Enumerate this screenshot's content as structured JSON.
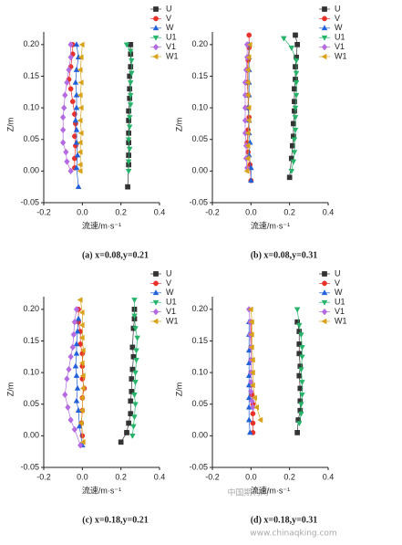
{
  "chart_data": [
    {
      "type": "line",
      "caption": "(a) x=0.08,y=0.21",
      "xlabel": "流速/m·s⁻¹",
      "ylabel": "Z/m",
      "xlim": [
        -0.2,
        0.4
      ],
      "ylim": [
        -0.05,
        0.22
      ],
      "xticks": [
        {
          "value": -0.2,
          "label": "-0.2"
        },
        {
          "value": 0,
          "label": "0.0"
        },
        0.2,
        0.4
      ],
      "yticks": [
        {
          "value": -0.05,
          "label": "-0.05"
        },
        {
          "value": 0,
          "label": "0.00"
        },
        0.05,
        {
          "value": 0.1,
          "label": "0.10"
        },
        0.15,
        {
          "value": 0.2,
          "label": "0.20"
        }
      ],
      "series": [
        {
          "name": "U",
          "color": "#333333",
          "marker": "square",
          "x": [
            0.25,
            0.25,
            0.25,
            0.245,
            0.245,
            0.245,
            0.24,
            0.24,
            0.24,
            0.24,
            0.24,
            0.24,
            0.235
          ],
          "values": [
            0.2,
            0.185,
            0.165,
            0.15,
            0.13,
            0.115,
            0.095,
            0.08,
            0.06,
            0.045,
            0.025,
            0.01,
            -0.025
          ]
        },
        {
          "name": "V",
          "color": "#e8312a",
          "marker": "circle",
          "x": [
            -0.05,
            -0.05,
            -0.06,
            -0.07,
            -0.06,
            -0.05,
            -0.04,
            -0.035,
            -0.04,
            -0.035,
            -0.04,
            -0.04
          ],
          "values": [
            0.2,
            0.185,
            0.165,
            0.145,
            0.13,
            0.11,
            0.09,
            0.075,
            0.055,
            0.04,
            0.02,
            0.005
          ]
        },
        {
          "name": "W",
          "color": "#2160d8",
          "marker": "triangle-up",
          "x": [
            -0.03,
            -0.02,
            -0.03,
            -0.035,
            -0.03,
            -0.03,
            -0.035,
            -0.03,
            -0.03,
            -0.025,
            -0.03,
            -0.02
          ],
          "values": [
            0.2,
            0.18,
            0.16,
            0.14,
            0.12,
            0.1,
            0.08,
            0.065,
            0.045,
            0.025,
            0.005,
            -0.025
          ]
        },
        {
          "name": "U1",
          "color": "#26b36a",
          "marker": "triangle-down",
          "x": [
            0.23,
            0.25,
            0.255,
            0.255,
            0.25,
            0.25,
            0.25,
            0.245,
            0.245,
            0.24,
            0.245,
            0.24,
            0.24
          ],
          "values": [
            0.2,
            0.19,
            0.175,
            0.155,
            0.14,
            0.12,
            0.105,
            0.085,
            0.07,
            0.05,
            0.035,
            0.015,
            0
          ]
        },
        {
          "name": "V1",
          "color": "#b36ae2",
          "marker": "diamond",
          "x": [
            -0.06,
            -0.06,
            -0.07,
            -0.08,
            -0.09,
            -0.095,
            -0.1,
            -0.1,
            -0.1,
            -0.085,
            -0.08,
            -0.06
          ],
          "values": [
            0.2,
            0.18,
            0.16,
            0.14,
            0.12,
            0.1,
            0.085,
            0.065,
            0.045,
            0.03,
            0.015,
            0
          ]
        },
        {
          "name": "W1",
          "color": "#d9a21b",
          "marker": "triangle-left",
          "x": [
            0,
            -0.005,
            -0.01,
            -0.005,
            -0.01,
            -0.005,
            -0.01,
            -0.005,
            -0.01,
            -0.01,
            -0.01,
            -0.01
          ],
          "values": [
            0.2,
            0.18,
            0.16,
            0.14,
            0.12,
            0.1,
            0.08,
            0.06,
            0.045,
            0.03,
            0.01,
            0
          ]
        }
      ]
    },
    {
      "type": "line",
      "caption": "(b) x=0.08,y=0.31",
      "xlabel": "流速/m·s⁻¹",
      "ylabel": "Z/m",
      "xlim": [
        -0.2,
        0.4
      ],
      "ylim": [
        -0.05,
        0.22
      ],
      "xticks": [
        {
          "value": -0.2,
          "label": "-0.2"
        },
        {
          "value": 0,
          "label": "0.0"
        },
        0.2,
        0.4
      ],
      "yticks": [
        {
          "value": -0.05,
          "label": "-0.05"
        },
        {
          "value": 0,
          "label": "0.00"
        },
        0.05,
        {
          "value": 0.1,
          "label": "0.10"
        },
        0.15,
        {
          "value": 0.2,
          "label": "0.20"
        }
      ],
      "series": [
        {
          "name": "U",
          "color": "#333333",
          "marker": "square",
          "x": [
            0.23,
            0.24,
            0.235,
            0.23,
            0.23,
            0.225,
            0.225,
            0.225,
            0.22,
            0.22,
            0.215,
            0.21,
            0.2
          ],
          "values": [
            0.215,
            0.2,
            0.18,
            0.165,
            0.145,
            0.13,
            0.11,
            0.095,
            0.075,
            0.055,
            0.04,
            0.02,
            -0.01
          ]
        },
        {
          "name": "V",
          "color": "#e8312a",
          "marker": "circle",
          "x": [
            -0.01,
            -0.01,
            -0.015,
            -0.02,
            -0.02,
            -0.015,
            -0.015,
            -0.01,
            -0.015,
            -0.02,
            -0.015,
            -0.005,
            0
          ],
          "values": [
            0.215,
            0.195,
            0.175,
            0.16,
            0.14,
            0.12,
            0.1,
            0.085,
            0.065,
            0.045,
            0.03,
            0.01,
            -0.015
          ]
        },
        {
          "name": "W",
          "color": "#2160d8",
          "marker": "triangle-up",
          "x": [
            -0.01,
            -0.01,
            -0.01,
            -0.01,
            -0.01,
            -0.015,
            -0.01,
            -0.01,
            -0.005,
            -0.01,
            0,
            0
          ],
          "values": [
            0.2,
            0.18,
            0.16,
            0.14,
            0.12,
            0.1,
            0.08,
            0.06,
            0.045,
            0.025,
            0.005,
            -0.015
          ]
        },
        {
          "name": "U1",
          "color": "#26b36a",
          "marker": "triangle-down",
          "x": [
            0.17,
            0.21,
            0.235,
            0.235,
            0.235,
            0.235,
            0.23,
            0.23,
            0.23,
            0.225,
            0.225,
            0.22,
            0.21
          ],
          "values": [
            0.21,
            0.195,
            0.175,
            0.155,
            0.14,
            0.12,
            0.1,
            0.085,
            0.065,
            0.05,
            0.03,
            0.015,
            0
          ]
        },
        {
          "name": "V1",
          "color": "#b36ae2",
          "marker": "diamond",
          "x": [
            -0.02,
            -0.02,
            -0.025,
            -0.03,
            -0.03,
            -0.03,
            -0.03,
            -0.03,
            -0.025,
            -0.025,
            -0.02
          ],
          "values": [
            0.2,
            0.18,
            0.16,
            0.14,
            0.12,
            0.1,
            0.08,
            0.06,
            0.04,
            0.02,
            0.005
          ]
        },
        {
          "name": "W1",
          "color": "#d9a21b",
          "marker": "triangle-left",
          "x": [
            -0.005,
            -0.01,
            -0.015,
            -0.015,
            -0.015,
            -0.01,
            -0.01,
            -0.015,
            -0.015,
            -0.015,
            -0.02
          ],
          "values": [
            0.2,
            0.18,
            0.16,
            0.14,
            0.12,
            0.1,
            0.08,
            0.06,
            0.04,
            0.02,
            0
          ]
        }
      ]
    },
    {
      "type": "line",
      "caption": "(c) x=0.18,y=0.21",
      "xlabel": "流速/m·s⁻¹",
      "ylabel": "Z/m",
      "xlim": [
        -0.2,
        0.4
      ],
      "ylim": [
        -0.05,
        0.22
      ],
      "xticks": [
        {
          "value": -0.2,
          "label": "-0.2"
        },
        {
          "value": 0,
          "label": "0.0"
        },
        0.2,
        0.4
      ],
      "yticks": [
        {
          "value": -0.05,
          "label": "-0.05"
        },
        {
          "value": 0,
          "label": "0.00"
        },
        0.05,
        {
          "value": 0.1,
          "label": "0.10"
        },
        0.15,
        {
          "value": 0.2,
          "label": "0.20"
        }
      ],
      "series": [
        {
          "name": "U",
          "color": "#333333",
          "marker": "square",
          "x": [
            0.27,
            0.27,
            0.265,
            0.26,
            0.265,
            0.26,
            0.255,
            0.255,
            0.25,
            0.25,
            0.24,
            0.23,
            0.2
          ],
          "values": [
            0.2,
            0.185,
            0.17,
            0.14,
            0.125,
            0.105,
            0.09,
            0.07,
            0.055,
            0.035,
            0.02,
            0.005,
            -0.01
          ]
        },
        {
          "name": "V",
          "color": "#e8312a",
          "marker": "circle",
          "x": [
            -0.02,
            -0.02,
            -0.01,
            -0.01,
            0,
            0,
            0,
            0.01,
            0,
            0,
            -0.005,
            0
          ],
          "values": [
            0.2,
            0.18,
            0.165,
            0.145,
            0.13,
            0.11,
            0.09,
            0.075,
            0.06,
            0.04,
            0.02,
            0
          ]
        },
        {
          "name": "W",
          "color": "#2160d8",
          "marker": "triangle-up",
          "x": [
            -0.02,
            -0.025,
            -0.03,
            -0.03,
            -0.035,
            -0.03,
            -0.025,
            -0.03,
            -0.02,
            -0.015,
            0
          ],
          "values": [
            0.185,
            0.165,
            0.145,
            0.13,
            0.11,
            0.095,
            0.075,
            0.055,
            0.04,
            0.015,
            -0.015
          ]
        },
        {
          "name": "U1",
          "color": "#26b36a",
          "marker": "triangle-down",
          "x": [
            0.27,
            0.27,
            0.275,
            0.285,
            0.28,
            0.28,
            0.275,
            0.275,
            0.27,
            0.275,
            0.27,
            0.265,
            0.26
          ],
          "values": [
            0.215,
            0.19,
            0.17,
            0.155,
            0.135,
            0.12,
            0.1,
            0.085,
            0.065,
            0.05,
            0.03,
            0.015,
            0
          ]
        },
        {
          "name": "V1",
          "color": "#b36ae2",
          "marker": "diamond",
          "x": [
            -0.03,
            -0.04,
            -0.045,
            -0.05,
            -0.06,
            -0.07,
            -0.08,
            -0.09,
            -0.075,
            -0.06,
            -0.04,
            -0.01
          ],
          "values": [
            0.2,
            0.18,
            0.16,
            0.14,
            0.125,
            0.105,
            0.09,
            0.065,
            0.045,
            0.025,
            0.01,
            -0.015
          ]
        },
        {
          "name": "W1",
          "color": "#d9a21b",
          "marker": "triangle-left",
          "x": [
            -0.01,
            0,
            0,
            0,
            0.005,
            0,
            0.005,
            0.005,
            0,
            0,
            -0.005,
            0.005
          ],
          "values": [
            0.215,
            0.195,
            0.175,
            0.155,
            0.135,
            0.115,
            0.095,
            0.075,
            0.06,
            0.04,
            0.02,
            -0.01
          ]
        }
      ]
    },
    {
      "type": "line",
      "caption": "(d) x=0.18,y=0.31",
      "xlabel": "流速/m·s⁻¹",
      "ylabel": "Z/m",
      "xlim": [
        -0.2,
        0.4
      ],
      "ylim": [
        -0.05,
        0.22
      ],
      "xticks": [
        {
          "value": -0.2,
          "label": "-0.2"
        },
        {
          "value": 0,
          "label": "0.0"
        },
        0.2,
        0.4
      ],
      "yticks": [
        {
          "value": -0.05,
          "label": "-0.05"
        },
        {
          "value": 0,
          "label": "0.00"
        },
        0.05,
        {
          "value": 0.1,
          "label": "0.10"
        },
        0.15,
        {
          "value": 0.2,
          "label": "0.20"
        }
      ],
      "series": [
        {
          "name": "U",
          "color": "#333333",
          "marker": "square",
          "x": [
            0.24,
            0.25,
            0.25,
            0.25,
            0.255,
            0.25,
            0.255,
            0.255,
            0.255,
            0.245,
            0.24
          ],
          "values": [
            0.18,
            0.165,
            0.145,
            0.13,
            0.11,
            0.095,
            0.075,
            0.055,
            0.04,
            0.025,
            0.005
          ]
        },
        {
          "name": "V",
          "color": "#e8312a",
          "marker": "circle",
          "x": [
            0,
            0,
            0,
            0,
            0,
            0,
            0.005,
            0.01,
            0.01,
            0.01,
            0.01
          ],
          "values": [
            0.18,
            0.16,
            0.14,
            0.12,
            0.1,
            0.08,
            0.065,
            0.05,
            0.035,
            0.02,
            0.005
          ]
        },
        {
          "name": "W",
          "color": "#2160d8",
          "marker": "triangle-up",
          "x": [
            -0.01,
            -0.01,
            -0.01,
            -0.01,
            -0.01,
            -0.01,
            -0.01,
            -0.01,
            -0.01,
            -0.005
          ],
          "values": [
            0.18,
            0.16,
            0.135,
            0.115,
            0.095,
            0.08,
            0.06,
            0.045,
            0.025,
            0.005
          ]
        },
        {
          "name": "U1",
          "color": "#26b36a",
          "marker": "triangle-down",
          "x": [
            0.24,
            0.25,
            0.26,
            0.265,
            0.265,
            0.26,
            0.265,
            0.265,
            0.26,
            0.26,
            0.25
          ],
          "values": [
            0.2,
            0.175,
            0.16,
            0.14,
            0.125,
            0.105,
            0.085,
            0.065,
            0.05,
            0.035,
            0.02
          ]
        },
        {
          "name": "V1",
          "color": "#b36ae2",
          "marker": "diamond",
          "x": [
            -0.01,
            -0.005,
            -0.005,
            0,
            0,
            0,
            0,
            0,
            0.005,
            0.01
          ],
          "values": [
            0.2,
            0.18,
            0.16,
            0.14,
            0.12,
            0.1,
            0.085,
            0.07,
            0.055,
            0.045
          ]
        },
        {
          "name": "W1",
          "color": "#d9a21b",
          "marker": "triangle-left",
          "x": [
            0,
            0.005,
            0.005,
            0.005,
            0.01,
            0.01,
            0.01,
            0.02,
            0.03,
            0.05
          ],
          "values": [
            0.2,
            0.18,
            0.16,
            0.14,
            0.12,
            0.1,
            0.08,
            0.06,
            0.045,
            0.025
          ]
        }
      ]
    }
  ],
  "watermark": [
    "中国期刊网",
    "www.chinaqking.com"
  ]
}
